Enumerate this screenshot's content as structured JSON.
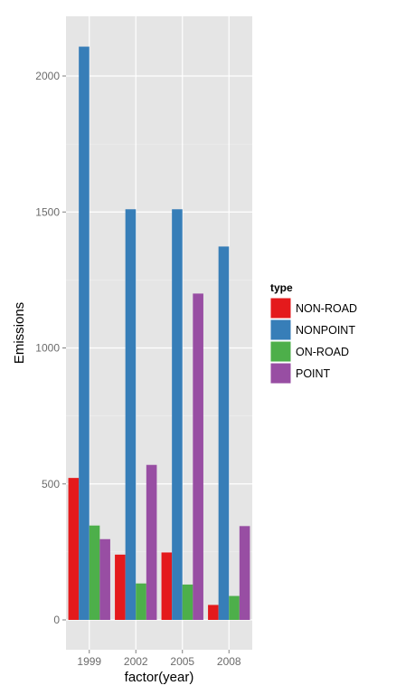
{
  "chart_data": {
    "type": "bar",
    "title": "",
    "xlabel": "factor(year)",
    "ylabel": "Emissions",
    "categories": [
      "1999",
      "2002",
      "2005",
      "2008"
    ],
    "series": [
      {
        "name": "NON-ROAD",
        "color": "#E41A1C",
        "values": [
          522,
          240,
          248,
          55
        ]
      },
      {
        "name": "NONPOINT",
        "color": "#377EB8",
        "values": [
          2108,
          1510,
          1510,
          1373
        ]
      },
      {
        "name": "ON-ROAD",
        "color": "#4DAF4A",
        "values": [
          347,
          134,
          130,
          88
        ]
      },
      {
        "name": "POINT",
        "color": "#984EA3",
        "values": [
          297,
          570,
          1200,
          345
        ]
      }
    ],
    "yticks": [
      0,
      500,
      1000,
      1500,
      2000
    ],
    "ylim": [
      -105,
      2215
    ],
    "grid": true,
    "legend": {
      "title": "type",
      "position": "right"
    }
  }
}
